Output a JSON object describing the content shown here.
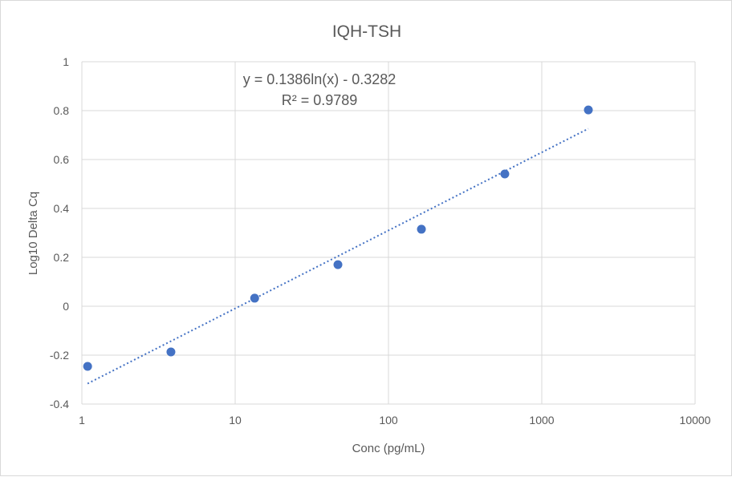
{
  "chart_data": {
    "type": "scatter",
    "title": "IQH-TSH",
    "xlabel": "Conc (pg/mL)",
    "ylabel": "Log10 Delta Cq",
    "x_scale": "log",
    "xlim": [
      1,
      10000
    ],
    "ylim": [
      -0.4,
      1
    ],
    "x_ticks": [
      "1",
      "10",
      "100",
      "1000",
      "10000"
    ],
    "y_ticks": [
      "-0.4",
      "-0.2",
      "0",
      "0.2",
      "0.4",
      "0.6",
      "0.8",
      "1"
    ],
    "grid": true,
    "legend": "none",
    "series": [
      {
        "color": "#4472c4",
        "x": [
          1.09,
          3.81,
          13.4,
          46.8,
          164,
          574,
          2013
        ],
        "y": [
          -0.246,
          -0.187,
          0.033,
          0.17,
          0.315,
          0.541,
          0.803
        ]
      }
    ],
    "trendline": {
      "type": "logarithmic",
      "a": 0.1386,
      "b": -0.3282,
      "color": "#4472c4",
      "style": "dotted",
      "equation_label": "y = 0.1386ln(x) - 0.3282",
      "r2_label": "R² = 0.9789"
    }
  }
}
